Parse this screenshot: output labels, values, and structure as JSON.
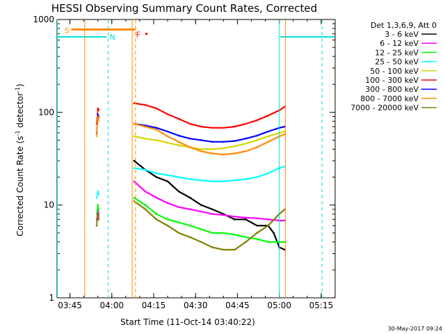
{
  "chart_data": {
    "type": "line",
    "title": "HESSI Observing Summary Count Rates, Corrected",
    "xlabel": "Start Time (11-Oct-14 03:40:22)",
    "ylabel_main": "Corrected Count Rate (s",
    "ylabel_sup1": "-1",
    "ylabel_mid": " detector",
    "ylabel_sup2": "-1",
    "ylabel_end": ")",
    "x_unit": "minutes after 03:40",
    "xlim": [
      0.37,
      100
    ],
    "ylim": [
      1,
      1000
    ],
    "yscale": "log",
    "x_ticks": [
      {
        "t": 5,
        "label": "03:45"
      },
      {
        "t": 20,
        "label": "04:00"
      },
      {
        "t": 35,
        "label": "04:15"
      },
      {
        "t": 50,
        "label": "04:30"
      },
      {
        "t": 65,
        "label": "04:45"
      },
      {
        "t": 80,
        "label": "05:00"
      },
      {
        "t": 95,
        "label": "05:15"
      }
    ],
    "y_ticks": [
      {
        "v": 1,
        "label": "1"
      },
      {
        "v": 10,
        "label": "10"
      },
      {
        "v": 100,
        "label": "100"
      },
      {
        "v": 1000,
        "label": "1000"
      }
    ],
    "legend_header": "Det 1,3,6,9, Att 0",
    "legend_placement": "right",
    "series": [
      {
        "name": "3 - 6 keV",
        "color": "#000000",
        "points": [
          [
            14.6,
            6
          ],
          [
            15.0,
            10
          ],
          [
            15.3,
            7
          ],
          [
            28,
            30
          ],
          [
            32,
            24
          ],
          [
            36,
            20
          ],
          [
            40,
            18
          ],
          [
            44,
            14
          ],
          [
            48,
            12
          ],
          [
            52,
            10
          ],
          [
            56,
            9
          ],
          [
            60,
            8
          ],
          [
            64,
            7
          ],
          [
            68,
            7
          ],
          [
            72,
            6
          ],
          [
            76,
            6
          ],
          [
            78,
            5
          ],
          [
            80,
            3.5
          ],
          [
            82,
            3.3
          ]
        ]
      },
      {
        "name": "6 - 12 keV",
        "color": "#ff00ff",
        "points": [
          [
            14.6,
            7
          ],
          [
            15.0,
            9
          ],
          [
            15.3,
            8
          ],
          [
            28,
            18
          ],
          [
            32,
            14
          ],
          [
            36,
            12
          ],
          [
            40,
            10.5
          ],
          [
            44,
            9.5
          ],
          [
            48,
            9
          ],
          [
            52,
            8.5
          ],
          [
            56,
            8
          ],
          [
            60,
            7.8
          ],
          [
            64,
            7.5
          ],
          [
            68,
            7.3
          ],
          [
            72,
            7.2
          ],
          [
            76,
            7
          ],
          [
            80,
            6.8
          ],
          [
            82,
            6.8
          ]
        ]
      },
      {
        "name": "12 - 25 keV",
        "color": "#00ff00",
        "points": [
          [
            14.6,
            8
          ],
          [
            15.0,
            10
          ],
          [
            15.3,
            9
          ],
          [
            28,
            12
          ],
          [
            32,
            10
          ],
          [
            36,
            8
          ],
          [
            40,
            7
          ],
          [
            44,
            6.5
          ],
          [
            48,
            6
          ],
          [
            52,
            5.5
          ],
          [
            56,
            5
          ],
          [
            60,
            5
          ],
          [
            64,
            4.8
          ],
          [
            68,
            4.5
          ],
          [
            72,
            4.3
          ],
          [
            76,
            4
          ],
          [
            80,
            4
          ],
          [
            82,
            4
          ]
        ]
      },
      {
        "name": "25 - 50 keV",
        "color": "#00ffff",
        "points": [
          [
            14.6,
            12
          ],
          [
            15.0,
            14
          ],
          [
            15.3,
            13
          ],
          [
            28,
            25
          ],
          [
            32,
            24
          ],
          [
            36,
            22
          ],
          [
            40,
            21
          ],
          [
            44,
            20
          ],
          [
            48,
            19
          ],
          [
            52,
            18.5
          ],
          [
            56,
            18
          ],
          [
            60,
            18
          ],
          [
            64,
            18.5
          ],
          [
            68,
            19
          ],
          [
            72,
            20
          ],
          [
            76,
            22
          ],
          [
            80,
            25
          ],
          [
            82,
            26
          ]
        ]
      },
      {
        "name": "50 - 100 keV",
        "color": "#d4d400",
        "points": [
          [
            14.6,
            55
          ],
          [
            15.0,
            85
          ],
          [
            15.3,
            80
          ],
          [
            28,
            55
          ],
          [
            32,
            52
          ],
          [
            36,
            50
          ],
          [
            40,
            47
          ],
          [
            44,
            44
          ],
          [
            48,
            42
          ],
          [
            52,
            40
          ],
          [
            56,
            40
          ],
          [
            60,
            41
          ],
          [
            64,
            43
          ],
          [
            68,
            46
          ],
          [
            72,
            50
          ],
          [
            76,
            55
          ],
          [
            80,
            60
          ],
          [
            82,
            62
          ]
        ]
      },
      {
        "name": "100 - 300 keV",
        "color": "#ff0000",
        "points": [
          [
            14.6,
            75
          ],
          [
            15.0,
            110
          ],
          [
            15.3,
            105
          ],
          [
            28,
            125
          ],
          [
            32,
            120
          ],
          [
            36,
            110
          ],
          [
            40,
            95
          ],
          [
            44,
            85
          ],
          [
            48,
            75
          ],
          [
            52,
            70
          ],
          [
            56,
            68
          ],
          [
            60,
            68
          ],
          [
            64,
            70
          ],
          [
            68,
            75
          ],
          [
            72,
            82
          ],
          [
            76,
            92
          ],
          [
            80,
            105
          ],
          [
            82,
            115
          ]
        ]
      },
      {
        "name": "300 - 800 keV",
        "color": "#0000ff",
        "points": [
          [
            14.6,
            60
          ],
          [
            15.0,
            95
          ],
          [
            15.3,
            90
          ],
          [
            28,
            75
          ],
          [
            32,
            72
          ],
          [
            36,
            68
          ],
          [
            40,
            62
          ],
          [
            44,
            56
          ],
          [
            48,
            52
          ],
          [
            52,
            50
          ],
          [
            56,
            48
          ],
          [
            60,
            48
          ],
          [
            64,
            49
          ],
          [
            68,
            52
          ],
          [
            72,
            56
          ],
          [
            76,
            62
          ],
          [
            80,
            68
          ],
          [
            82,
            70
          ]
        ]
      },
      {
        "name": "800 - 7000 keV",
        "color": "#ff8c00",
        "points": [
          [
            14.6,
            58
          ],
          [
            15.0,
            90
          ],
          [
            15.3,
            85
          ],
          [
            28,
            75
          ],
          [
            32,
            70
          ],
          [
            36,
            65
          ],
          [
            40,
            55
          ],
          [
            44,
            48
          ],
          [
            48,
            42
          ],
          [
            52,
            38
          ],
          [
            56,
            36
          ],
          [
            60,
            35
          ],
          [
            64,
            36
          ],
          [
            68,
            38
          ],
          [
            72,
            42
          ],
          [
            76,
            48
          ],
          [
            80,
            55
          ],
          [
            82,
            58
          ]
        ]
      },
      {
        "name": "7000 - 20000 keV",
        "color": "#808000",
        "points": [
          [
            14.6,
            6
          ],
          [
            15.0,
            8
          ],
          [
            15.3,
            7
          ],
          [
            28,
            11
          ],
          [
            32,
            9
          ],
          [
            36,
            7
          ],
          [
            40,
            6
          ],
          [
            44,
            5
          ],
          [
            48,
            4.5
          ],
          [
            52,
            4
          ],
          [
            56,
            3.5
          ],
          [
            60,
            3.3
          ],
          [
            64,
            3.3
          ],
          [
            68,
            4
          ],
          [
            72,
            5
          ],
          [
            76,
            6
          ],
          [
            80,
            8
          ],
          [
            82,
            9
          ]
        ]
      }
    ],
    "flags": {
      "flag_s_label": "S",
      "flag_n_label": "N",
      "flag_f_label": "F",
      "orange_color": "#ff8c00",
      "cyan_color": "#00e0e0",
      "orange_bar": [
        5.5,
        28.5
      ],
      "orange_solid_t": [
        10.3,
        27.3,
        82.2
      ],
      "orange_dashed_t": [
        28.5
      ],
      "cyan_dashed_t": [
        18.7,
        95.3
      ],
      "cyan_solid_t": [
        80.0
      ],
      "cyan_level_left": [
        0.4,
        18.0
      ],
      "cyan_level_right": [
        80.3,
        99.8
      ],
      "cyan_level": 650,
      "orange_level": 780,
      "f_marker_t": 32.4,
      "f_marker_v": 700
    }
  },
  "footer": {
    "date": "30-May-2017 09:24"
  }
}
